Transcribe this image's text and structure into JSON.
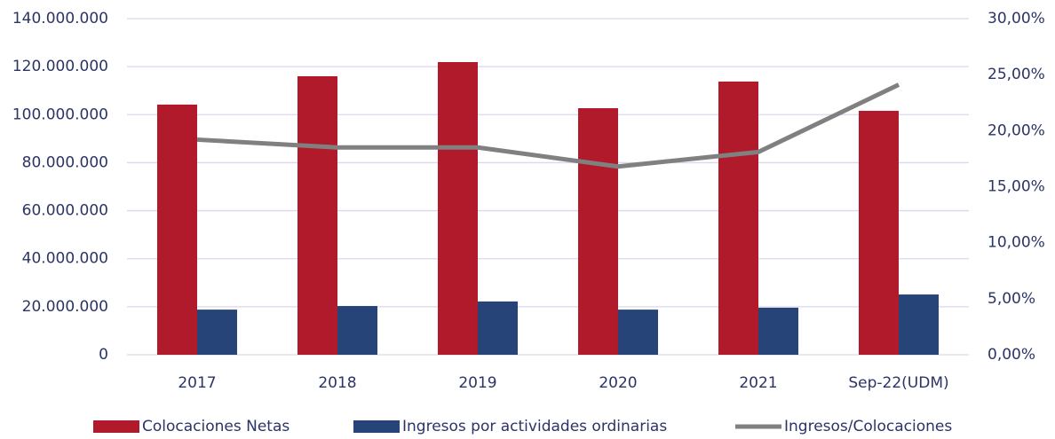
{
  "chart_data": {
    "type": "bar",
    "categories": [
      "2017",
      "2018",
      "2019",
      "2020",
      "2021",
      "Sep-22(UDM)"
    ],
    "series": [
      {
        "name": "Colocaciones Netas",
        "color": "#b01a2b",
        "type": "bar",
        "values": [
          104200000,
          116000000,
          121900000,
          102700000,
          113800000,
          101600000
        ]
      },
      {
        "name": "Ingresos por actividades ordinarias",
        "color": "#264478",
        "type": "bar",
        "values": [
          18800000,
          20300000,
          22200000,
          18800000,
          19600000,
          25100000
        ]
      },
      {
        "name": "Ingresos/Colocaciones",
        "color": "#808080",
        "type": "line",
        "axis": "y2",
        "values": [
          19.2,
          18.5,
          18.5,
          16.8,
          18.1,
          24.1
        ]
      }
    ],
    "ylim": [
      0,
      140000000
    ],
    "yticks": [
      0,
      {
        "value": 20000000,
        "label": "20.000.000"
      },
      {
        "value": 40000000,
        "label": "40.000.000"
      },
      {
        "value": 60000000,
        "label": "60.000.000"
      },
      {
        "value": 80000000,
        "label": "80.000.000"
      },
      {
        "value": 100000000,
        "label": "100.000.000"
      },
      {
        "value": 120000000,
        "label": "120.000.000"
      },
      {
        "value": 140000000,
        "label": "140.000.000"
      }
    ],
    "y2lim": [
      0,
      30
    ],
    "y2ticks": [
      {
        "value": 0,
        "label": "0,00%"
      },
      {
        "value": 5,
        "label": "5,00%"
      },
      {
        "value": 10,
        "label": "10,00%"
      },
      {
        "value": 15,
        "label": "15,00%"
      },
      {
        "value": 20,
        "label": "20,00%"
      },
      {
        "value": 25,
        "label": "25,00%"
      },
      {
        "value": 30,
        "label": "30,00%"
      }
    ],
    "grid": true,
    "legend": "bottom"
  }
}
